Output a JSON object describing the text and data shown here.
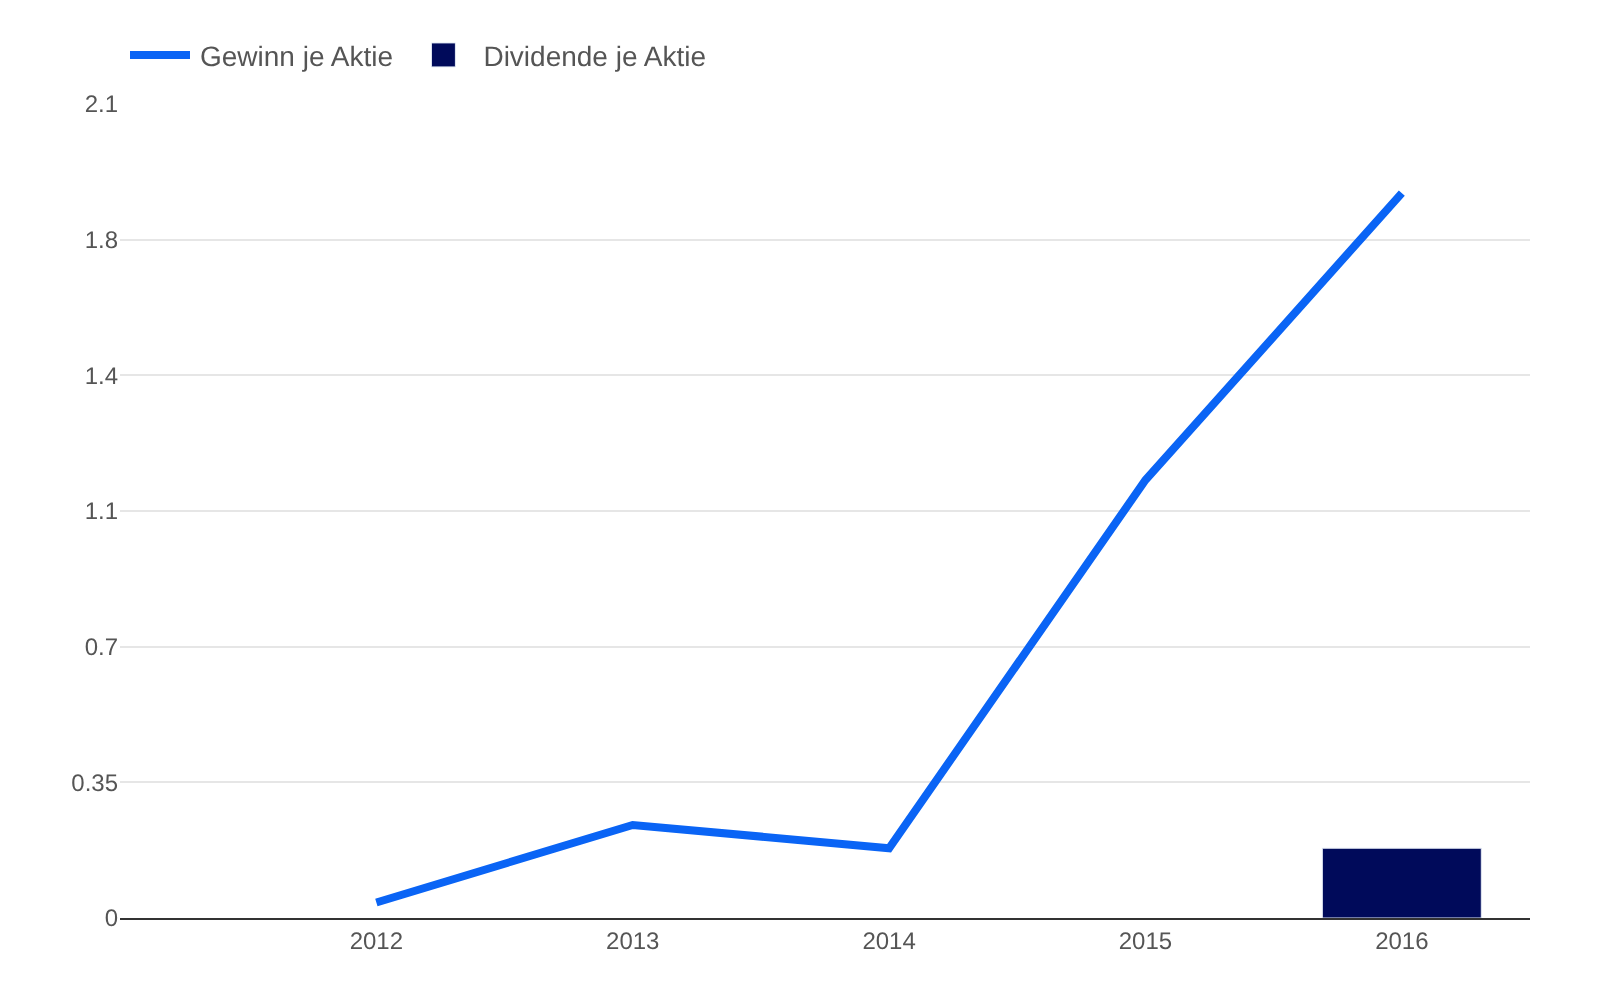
{
  "chart_data": {
    "type": "line",
    "categories": [
      "2012",
      "2013",
      "2014",
      "2015",
      "2016"
    ],
    "series": [
      {
        "name": "Gewinn je Aktie",
        "color": "#0a64f5",
        "values": [
          0.04,
          0.24,
          0.18,
          1.13,
          1.87
        ]
      },
      {
        "name": "Dividende je Aktie",
        "type": "bar",
        "color": "#000a5a",
        "values": [
          null,
          null,
          null,
          null,
          0.18
        ]
      }
    ],
    "ylim": [
      0,
      2.1
    ],
    "yticks": [
      0,
      0.35,
      0.7,
      {
        "value": 1.05,
        "label": "1.1"
      },
      1.4,
      {
        "value": 1.75,
        "label": "1.8"
      },
      2.1
    ],
    "grid": "y",
    "legend": "top left",
    "marker": "none",
    "line_style": "solid"
  }
}
